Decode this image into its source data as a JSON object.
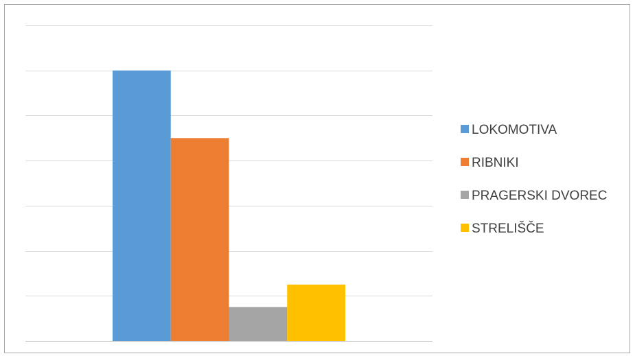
{
  "chart_data": {
    "type": "bar",
    "title": "",
    "xlabel": "",
    "ylabel": "",
    "ylim": [
      0,
      7
    ],
    "gridlines": [
      0,
      1,
      2,
      3,
      4,
      5,
      6,
      7
    ],
    "show_y_tick_labels": false,
    "grid": true,
    "legend_position": "right",
    "series": [
      {
        "name": "LOKOMOTIVA",
        "value": 6.0,
        "color": "#5b9bd5"
      },
      {
        "name": "RIBNIKI",
        "value": 4.5,
        "color": "#ed7d31"
      },
      {
        "name": "PRAGERSKI DVOREC",
        "value": 0.75,
        "color": "#a5a5a5"
      },
      {
        "name": "STRELIŠČE",
        "value": 1.25,
        "color": "#ffc000"
      }
    ]
  }
}
